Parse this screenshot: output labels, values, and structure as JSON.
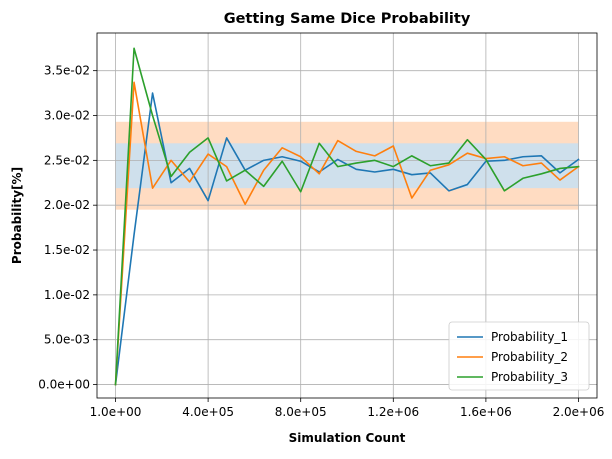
{
  "chart_data": {
    "type": "line",
    "title": "Getting Same Dice Probability",
    "xlabel": "Simulation Count",
    "ylabel": "Probability[%]",
    "xlim": [
      -80000,
      2080000
    ],
    "ylim": [
      -0.0015,
      0.0392
    ],
    "x_ticks": [
      {
        "value": 1,
        "label": "1.0e+00"
      },
      {
        "value": 400000,
        "label": "4.0e+05"
      },
      {
        "value": 800000,
        "label": "8.0e+05"
      },
      {
        "value": 1200000,
        "label": "1.2e+06"
      },
      {
        "value": 1600000,
        "label": "1.6e+06"
      },
      {
        "value": 2000000,
        "label": "2.0e+06"
      }
    ],
    "y_ticks": [
      {
        "value": 0.0,
        "label": "0.0e+00"
      },
      {
        "value": 0.005,
        "label": "5.0e-03"
      },
      {
        "value": 0.01,
        "label": "1.0e-02"
      },
      {
        "value": 0.015,
        "label": "1.5e-02"
      },
      {
        "value": 0.02,
        "label": "2.0e-02"
      },
      {
        "value": 0.025,
        "label": "2.5e-02"
      },
      {
        "value": 0.03,
        "label": "3.0e-02"
      },
      {
        "value": 0.035,
        "label": "3.5e-02"
      }
    ],
    "grid": true,
    "legend_position": "bottom-right",
    "bands": [
      {
        "y0": 0.0195,
        "y1": 0.0293,
        "color": "#ffdcc2"
      },
      {
        "y0": 0.0219,
        "y1": 0.0269,
        "color": "#cfe0ec"
      }
    ],
    "x": [
      1,
      80001,
      160001,
      240001,
      320001,
      400001,
      480001,
      560001,
      640001,
      720001,
      800001,
      880001,
      960001,
      1040001,
      1120001,
      1200001,
      1280001,
      1360001,
      1440001,
      1520001,
      1600001,
      1680001,
      1760001,
      1840001,
      1920001,
      2000001
    ],
    "series": [
      {
        "name": "Probability_1",
        "color": "#1f77b4",
        "values": [
          0.0,
          0.0167,
          0.0325,
          0.0225,
          0.0241,
          0.0205,
          0.0275,
          0.0239,
          0.025,
          0.0254,
          0.0249,
          0.0237,
          0.0251,
          0.024,
          0.0237,
          0.024,
          0.0234,
          0.0236,
          0.0216,
          0.0223,
          0.0249,
          0.025,
          0.0254,
          0.0255,
          0.0236,
          0.0251
        ]
      },
      {
        "name": "Probability_2",
        "color": "#ff7f0e",
        "values": [
          0.0,
          0.0337,
          0.0219,
          0.025,
          0.0226,
          0.0257,
          0.0243,
          0.0201,
          0.0239,
          0.0264,
          0.0254,
          0.0235,
          0.0272,
          0.026,
          0.0255,
          0.0266,
          0.0208,
          0.0239,
          0.0245,
          0.0258,
          0.0252,
          0.0254,
          0.0244,
          0.0247,
          0.0228,
          0.0243
        ]
      },
      {
        "name": "Probability_3",
        "color": "#2ca02c",
        "values": [
          0.0,
          0.0375,
          0.03,
          0.0232,
          0.0259,
          0.0275,
          0.0227,
          0.0239,
          0.0221,
          0.0249,
          0.0215,
          0.0269,
          0.0243,
          0.0247,
          0.025,
          0.0243,
          0.0255,
          0.0244,
          0.0247,
          0.0273,
          0.0251,
          0.0216,
          0.023,
          0.0235,
          0.0241,
          0.0243
        ]
      }
    ]
  }
}
